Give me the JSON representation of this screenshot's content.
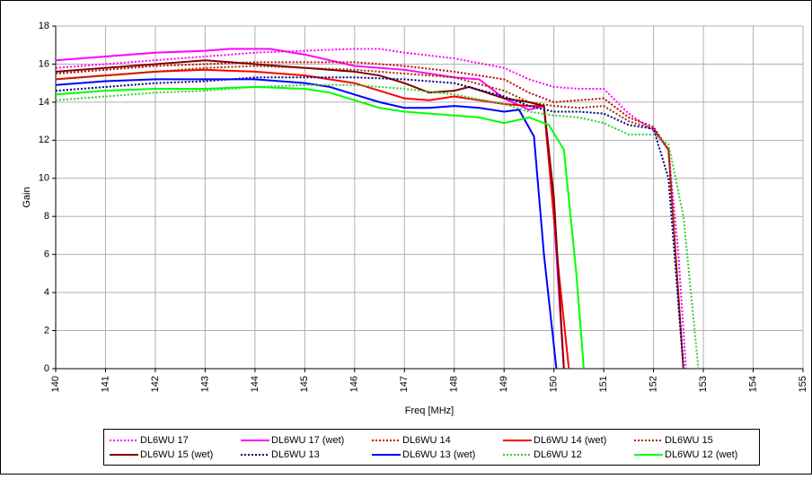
{
  "chart_data": {
    "type": "line",
    "x_label": "Freq [MHz]",
    "y_label": "Gain",
    "xlim": [
      140,
      155
    ],
    "xticks": [
      140,
      141,
      142,
      143,
      144,
      145,
      146,
      147,
      148,
      149,
      150,
      151,
      152,
      153,
      154,
      155
    ],
    "ylim": [
      0,
      18
    ],
    "yticks": [
      0,
      2,
      4,
      6,
      8,
      10,
      12,
      14,
      16,
      18
    ],
    "grid": true,
    "legend": "bottom",
    "series": [
      {
        "name": "DL6WU 17",
        "color": "#ff00ff",
        "dash": "dotted",
        "x": [
          140,
          141,
          142,
          143,
          144,
          145,
          146,
          146.5,
          147,
          148,
          149,
          149.5,
          150,
          150.5,
          151,
          151.5,
          152,
          152.3,
          152.5,
          152.65
        ],
        "values": [
          15.8,
          16.0,
          16.2,
          16.4,
          16.6,
          16.7,
          16.8,
          16.8,
          16.6,
          16.3,
          15.8,
          15.2,
          14.8,
          14.7,
          14.7,
          13.4,
          12.5,
          11.5,
          6,
          0
        ]
      },
      {
        "name": "DL6WU 17 (wet)",
        "color": "#ff00ff",
        "dash": "solid",
        "x": [
          140,
          141,
          142,
          143,
          143.5,
          144.3,
          145,
          145.5,
          146,
          147,
          148,
          148.5,
          149,
          149.5,
          149.8,
          150.0,
          150.2
        ],
        "values": [
          16.2,
          16.4,
          16.6,
          16.7,
          16.8,
          16.8,
          16.5,
          16.2,
          15.9,
          15.7,
          15.3,
          15.2,
          14.2,
          13.6,
          13.8,
          8,
          0
        ]
      },
      {
        "name": "DL6WU 14",
        "color": "#c00000",
        "dash": "dotted",
        "x": [
          140,
          141,
          142,
          143,
          144,
          145,
          146,
          147,
          148,
          149,
          149.5,
          150,
          150.5,
          151,
          151.5,
          152,
          152.3,
          152.6
        ],
        "values": [
          15.5,
          15.7,
          15.9,
          16.0,
          16.1,
          16.1,
          16.1,
          15.9,
          15.6,
          15.2,
          14.5,
          14.0,
          14.1,
          14.2,
          13.2,
          12.7,
          11.5,
          0
        ]
      },
      {
        "name": "DL6WU 14 (wet)",
        "color": "#ff0000",
        "dash": "solid",
        "x": [
          140,
          141,
          142,
          143,
          144,
          145,
          146,
          146.5,
          147,
          147.5,
          148,
          148.5,
          149,
          149.5,
          149.8,
          150.1,
          150.3
        ],
        "values": [
          15.2,
          15.4,
          15.6,
          15.7,
          15.6,
          15.4,
          15.0,
          14.6,
          14.2,
          14.1,
          14.3,
          14.1,
          13.9,
          13.8,
          13.8,
          5,
          0
        ]
      },
      {
        "name": "DL6WU 15",
        "color": "#993300",
        "dash": "dotted",
        "x": [
          140,
          141,
          142,
          143,
          144,
          145,
          146,
          147,
          148,
          149,
          149.5,
          150,
          150.5,
          151,
          151.5,
          152,
          152.3,
          152.6
        ],
        "values": [
          15.2,
          15.4,
          15.6,
          15.8,
          15.9,
          15.8,
          15.7,
          15.5,
          15.3,
          14.6,
          14.0,
          13.8,
          13.7,
          13.8,
          13.0,
          12.6,
          11.5,
          0
        ]
      },
      {
        "name": "DL6WU 15 (wet)",
        "color": "#800000",
        "dash": "solid",
        "x": [
          140,
          141,
          142,
          143,
          144,
          145,
          146,
          146.5,
          147,
          147.5,
          148,
          148.3,
          149,
          149.5,
          149.8,
          150.0,
          150.2
        ],
        "values": [
          15.6,
          15.8,
          16.0,
          16.2,
          16.0,
          15.8,
          15.6,
          15.4,
          15.0,
          14.5,
          14.6,
          14.8,
          14.2,
          14.0,
          13.8,
          9,
          0
        ]
      },
      {
        "name": "DL6WU 13",
        "color": "#000080",
        "dash": "dotted",
        "x": [
          140,
          141,
          142,
          143,
          144,
          145,
          146,
          147,
          148,
          149,
          149.5,
          150,
          150.5,
          151,
          151.5,
          152,
          152.3,
          152.6
        ],
        "values": [
          14.6,
          14.8,
          15.0,
          15.1,
          15.3,
          15.3,
          15.3,
          15.2,
          15.0,
          14.3,
          13.8,
          13.5,
          13.5,
          13.4,
          12.8,
          12.6,
          10,
          0
        ]
      },
      {
        "name": "DL6WU 13 (wet)",
        "color": "#0000ff",
        "dash": "solid",
        "x": [
          140,
          141,
          142,
          143,
          144,
          145,
          145.5,
          146,
          146.5,
          147,
          147.5,
          148,
          148.5,
          149,
          149.3,
          149.6,
          149.8,
          150.05
        ],
        "values": [
          14.9,
          15.1,
          15.2,
          15.2,
          15.2,
          15.0,
          14.8,
          14.4,
          14.0,
          13.7,
          13.7,
          13.8,
          13.7,
          13.5,
          13.6,
          12.2,
          6,
          0
        ]
      },
      {
        "name": "DL6WU 12",
        "color": "#33cc33",
        "dash": "dotted",
        "x": [
          140,
          141,
          142,
          143,
          144,
          145,
          146,
          147,
          148,
          149,
          149.5,
          150,
          150.5,
          151,
          151.5,
          152,
          152.3,
          152.6,
          152.9
        ],
        "values": [
          14.1,
          14.3,
          14.5,
          14.6,
          14.8,
          14.9,
          14.9,
          14.7,
          14.4,
          13.9,
          13.5,
          13.3,
          13.2,
          12.9,
          12.3,
          12.3,
          11.8,
          8,
          0
        ]
      },
      {
        "name": "DL6WU 12 (wet)",
        "color": "#00ff00",
        "dash": "solid",
        "x": [
          140,
          141,
          142,
          143,
          144,
          145,
          145.5,
          146,
          146.5,
          147,
          148,
          148.5,
          149,
          149.5,
          149.9,
          150.2,
          150.45,
          150.6
        ],
        "values": [
          14.4,
          14.6,
          14.7,
          14.7,
          14.8,
          14.7,
          14.5,
          14.1,
          13.7,
          13.5,
          13.3,
          13.2,
          12.9,
          13.2,
          12.8,
          11.5,
          5,
          0
        ]
      }
    ]
  }
}
